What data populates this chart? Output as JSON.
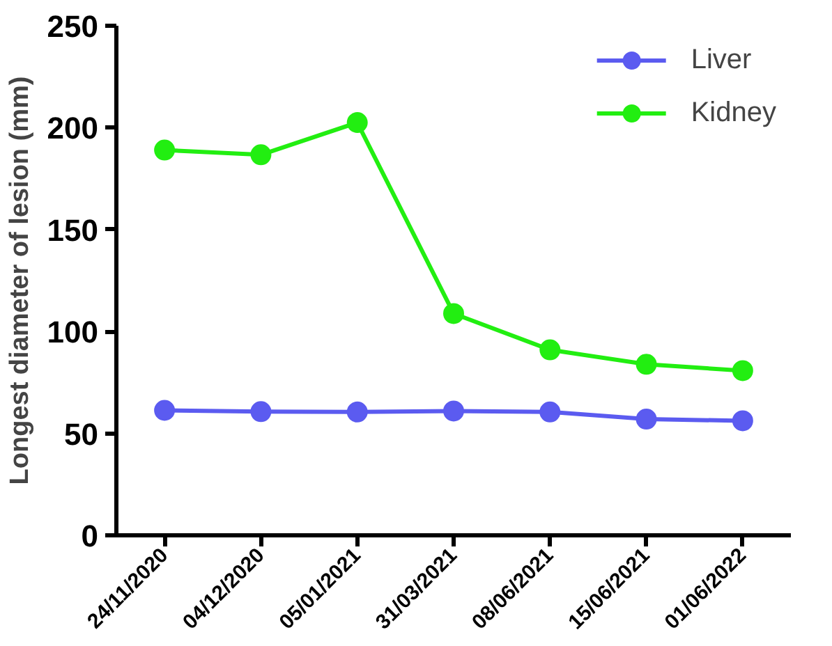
{
  "chart_data": {
    "type": "line",
    "ylabel": "Longest diameter of lesion (mm)",
    "categories": [
      "24/11/2020",
      "04/12/2020",
      "05/01/2021",
      "31/03/2021",
      "08/06/2021",
      "15/06/2021",
      "01/06/2022"
    ],
    "series": [
      {
        "name": "Liver",
        "color": "#5b5bf0",
        "values": [
          61.3,
          60.7,
          60.5,
          61,
          60.5,
          57,
          56.2
        ]
      },
      {
        "name": "Kidney",
        "color": "#22ee11",
        "values": [
          189,
          186.7,
          202.5,
          108.8,
          91,
          83.9,
          80.8
        ]
      }
    ],
    "ylim": [
      0,
      250
    ],
    "yticks": [
      0,
      50,
      100,
      150,
      200,
      250
    ],
    "grid": false,
    "legend": "top right",
    "marker": "circle",
    "line_style": "solid"
  }
}
